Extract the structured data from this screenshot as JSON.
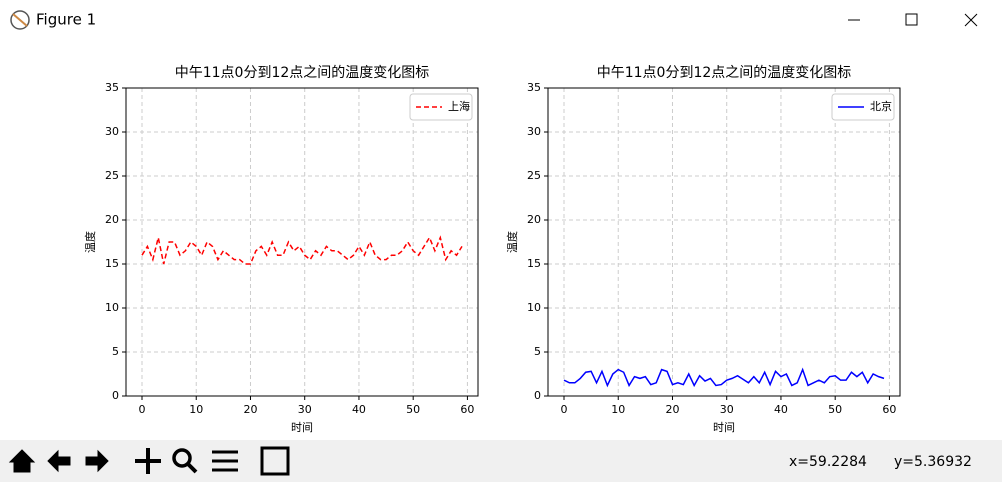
{
  "window": {
    "title": "Figure 1"
  },
  "status": {
    "x": "x=59.2284",
    "y": "y=5.36932"
  },
  "chart_data": [
    {
      "type": "line",
      "title": "中午11点0分到12点之间的温度变化图标",
      "x_label": "时间",
      "y_label": "温度",
      "x": [
        0,
        1,
        2,
        3,
        4,
        5,
        6,
        7,
        8,
        9,
        10,
        11,
        12,
        13,
        14,
        15,
        16,
        17,
        18,
        19,
        20,
        21,
        22,
        23,
        24,
        25,
        26,
        27,
        28,
        29,
        30,
        31,
        32,
        33,
        34,
        35,
        36,
        37,
        38,
        39,
        40,
        41,
        42,
        43,
        44,
        45,
        46,
        47,
        48,
        49,
        50,
        51,
        52,
        53,
        54,
        55,
        56,
        57,
        58,
        59
      ],
      "series": [
        {
          "name": "上海",
          "color": "#ff0000",
          "dash": true,
          "values": [
            16,
            17,
            15.5,
            18,
            15,
            17.5,
            17.5,
            16,
            16.5,
            17.5,
            17,
            16,
            17.5,
            17,
            15.5,
            16.5,
            16,
            15.5,
            15.5,
            15,
            15,
            16.5,
            17,
            16,
            17.5,
            16,
            16,
            17.5,
            16.5,
            17,
            16,
            15.5,
            16.5,
            16,
            17,
            16.5,
            16.5,
            16,
            15.5,
            16,
            17,
            16,
            17.5,
            16,
            15.5,
            15.5,
            16,
            16,
            16.5,
            17.5,
            16.5,
            16,
            17,
            18,
            16.5,
            18,
            15.5,
            16.5,
            16,
            17
          ]
        }
      ],
      "xlim": [
        -2.95,
        61.95
      ],
      "xticks": [
        0,
        10,
        20,
        30,
        40,
        50,
        60
      ],
      "ylim": [
        0,
        35
      ],
      "yticks": [
        0,
        5,
        10,
        15,
        20,
        25,
        30,
        35
      ],
      "grid": true,
      "legend": "upper right"
    },
    {
      "type": "line",
      "title": "中午11点0分到12点之间的温度变化图标",
      "x_label": "时间",
      "y_label": "温度",
      "x": [
        0,
        1,
        2,
        3,
        4,
        5,
        6,
        7,
        8,
        9,
        10,
        11,
        12,
        13,
        14,
        15,
        16,
        17,
        18,
        19,
        20,
        21,
        22,
        23,
        24,
        25,
        26,
        27,
        28,
        29,
        30,
        31,
        32,
        33,
        34,
        35,
        36,
        37,
        38,
        39,
        40,
        41,
        42,
        43,
        44,
        45,
        46,
        47,
        48,
        49,
        50,
        51,
        52,
        53,
        54,
        55,
        56,
        57,
        58,
        59
      ],
      "series": [
        {
          "name": "北京",
          "color": "#0000ff",
          "dash": false,
          "values": [
            1.8,
            1.5,
            1.5,
            2,
            2.7,
            2.8,
            1.5,
            2.8,
            1.2,
            2.5,
            3,
            2.7,
            1.2,
            2.2,
            2,
            2.2,
            1.3,
            1.5,
            3,
            2.8,
            1.3,
            1.5,
            1.3,
            2.5,
            1.2,
            2.3,
            1.7,
            2,
            1.2,
            1.3,
            1.8,
            2,
            2.3,
            1.9,
            1.5,
            2.2,
            1.5,
            2.7,
            1.3,
            2.8,
            2.2,
            2.5,
            1.2,
            1.5,
            3,
            1.2,
            1.5,
            1.8,
            1.5,
            2.2,
            2.3,
            1.8,
            1.8,
            2.7,
            2.2,
            2.7,
            1.5,
            2.5,
            2.2,
            2
          ]
        }
      ],
      "xlim": [
        -2.95,
        61.95
      ],
      "xticks": [
        0,
        10,
        20,
        30,
        40,
        50,
        60
      ],
      "ylim": [
        0,
        35
      ],
      "yticks": [
        0,
        5,
        10,
        15,
        20,
        25,
        30,
        35
      ],
      "grid": true,
      "legend": "upper right"
    }
  ]
}
